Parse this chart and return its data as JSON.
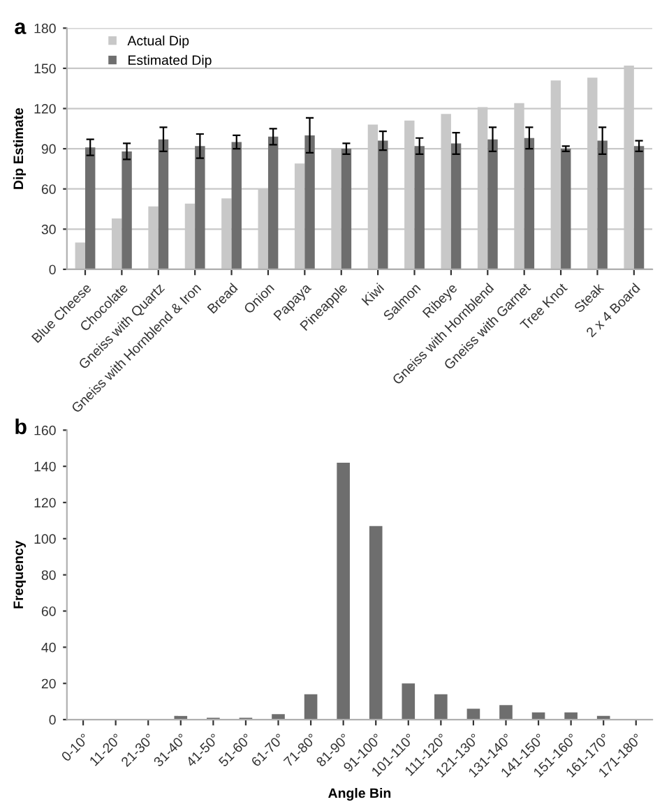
{
  "chart_data": [
    {
      "type": "bar",
      "title": "a",
      "ylabel": "Dip Estimate",
      "categories": [
        "Blue Cheese",
        "Chocolate",
        "Gneiss with Quartz",
        "Gneiss with Hornblend & Iron",
        "Bread",
        "Onion",
        "Papaya",
        "Pineapple",
        "Kiwi",
        "Salmon",
        "Ribeye",
        "Gneiss with Hornblend",
        "Gneiss with Garnet",
        "Tree Knot",
        "Steak",
        "2 x 4 Board"
      ],
      "series": [
        {
          "name": "Actual Dip",
          "color": "#c8c8c8",
          "values": [
            20,
            38,
            47,
            49,
            53,
            60,
            79,
            90,
            108,
            111,
            116,
            121,
            124,
            141,
            143,
            152
          ]
        },
        {
          "name": "Estimated Dip",
          "color": "#6e6e6e",
          "values": [
            91,
            88,
            97,
            92,
            95,
            99,
            100,
            90,
            96,
            92,
            94,
            97,
            98,
            90,
            96,
            92
          ],
          "errors": [
            6,
            6,
            9,
            9,
            5,
            6,
            13,
            4,
            7,
            6,
            8,
            9,
            8,
            2,
            10,
            4
          ]
        }
      ],
      "ylim": [
        0,
        180
      ],
      "yticks": [
        0,
        30,
        60,
        90,
        120,
        150,
        180
      ],
      "grid": "y",
      "legend": "top left"
    },
    {
      "type": "bar",
      "title": "b",
      "xlabel": "Angle Bin",
      "ylabel": "Frequency",
      "categories": [
        "0-10°",
        "11-20°",
        "21-30°",
        "31-40°",
        "41-50°",
        "51-60°",
        "61-70°",
        "71-80°",
        "81-90°",
        "91-100°",
        "101-110°",
        "111-120°",
        "121-130°",
        "131-140°",
        "141-150°",
        "151-160°",
        "161-170°",
        "171-180°"
      ],
      "series": [
        {
          "color": "#6e6e6e",
          "values": [
            0,
            0,
            0,
            2,
            1,
            1,
            3,
            14,
            142,
            107,
            20,
            14,
            6,
            8,
            4,
            4,
            2,
            0
          ]
        }
      ],
      "ylim": [
        0,
        160
      ],
      "yticks": [
        0,
        20,
        40,
        60,
        80,
        100,
        120,
        140,
        160
      ],
      "grid": false,
      "legend": false
    }
  ]
}
